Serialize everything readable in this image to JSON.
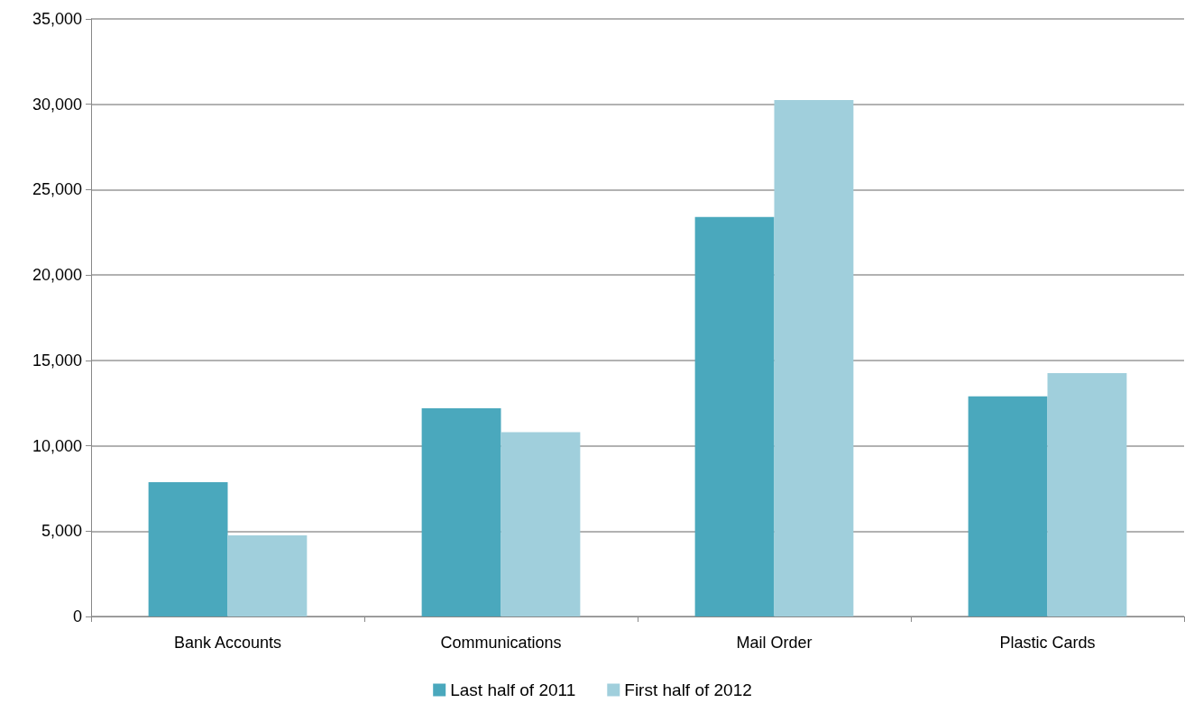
{
  "chart_data": {
    "type": "bar",
    "categories": [
      "Bank Accounts",
      "Communications",
      "Mail Order",
      "Plastic Cards"
    ],
    "series": [
      {
        "name": "Last half of 2011",
        "color": "#4aa8bd",
        "values": [
          7870,
          12200,
          23400,
          12900
        ]
      },
      {
        "name": "First half of 2012",
        "color": "#a0cfdc",
        "values": [
          4750,
          10800,
          30250,
          14250
        ]
      }
    ],
    "ylim": [
      0,
      35000
    ],
    "yticks": [
      {
        "value": 0,
        "label": "0"
      },
      {
        "value": 5000,
        "label": "5,000"
      },
      {
        "value": 10000,
        "label": "10,000"
      },
      {
        "value": 15000,
        "label": "15,000"
      },
      {
        "value": 20000,
        "label": "20,000"
      },
      {
        "value": 25000,
        "label": "25,000"
      },
      {
        "value": 30000,
        "label": "30,000"
      },
      {
        "value": 35000,
        "label": "35,000"
      }
    ],
    "grid": "y",
    "legend": "bottom"
  }
}
